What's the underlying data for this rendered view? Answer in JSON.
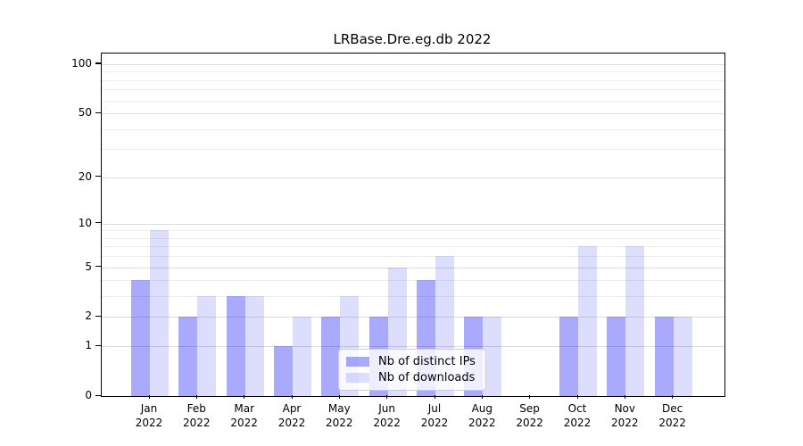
{
  "title": "LRBase.Dre.eg.db 2022",
  "chart_data": {
    "type": "bar",
    "title": "LRBase.Dre.eg.db 2022",
    "categories": [
      "Jan 2022",
      "Feb 2022",
      "Mar 2022",
      "Apr 2022",
      "May 2022",
      "Jun 2022",
      "Jul 2022",
      "Aug 2022",
      "Sep 2022",
      "Oct 2022",
      "Nov 2022",
      "Dec 2022"
    ],
    "series": [
      {
        "name": "Nb of distinct IPs",
        "color": "rgba(0,0,245,0.335)",
        "values": [
          4,
          2,
          3,
          1,
          2,
          2,
          4,
          2,
          0,
          2,
          2,
          2
        ]
      },
      {
        "name": "Nb of downloads",
        "color": "rgba(0,0,245,0.135)",
        "values": [
          9,
          3,
          3,
          2,
          3,
          5,
          6,
          2,
          0,
          7,
          7,
          2
        ]
      }
    ],
    "xlabel": "",
    "ylabel": "",
    "yscale": "log1p",
    "ylim": [
      0,
      116
    ],
    "y_ticks": [
      0,
      1,
      2,
      5,
      10,
      20,
      50,
      100
    ],
    "y_minor_gridlines": [
      3,
      4,
      6,
      7,
      8,
      9,
      30,
      40,
      60,
      70,
      80,
      90
    ],
    "grid": true,
    "legend_position": "lower center inside"
  },
  "colors": {
    "major_grid": "#dcdcdc",
    "minor_grid": "#ededed",
    "spine": "#000000"
  }
}
